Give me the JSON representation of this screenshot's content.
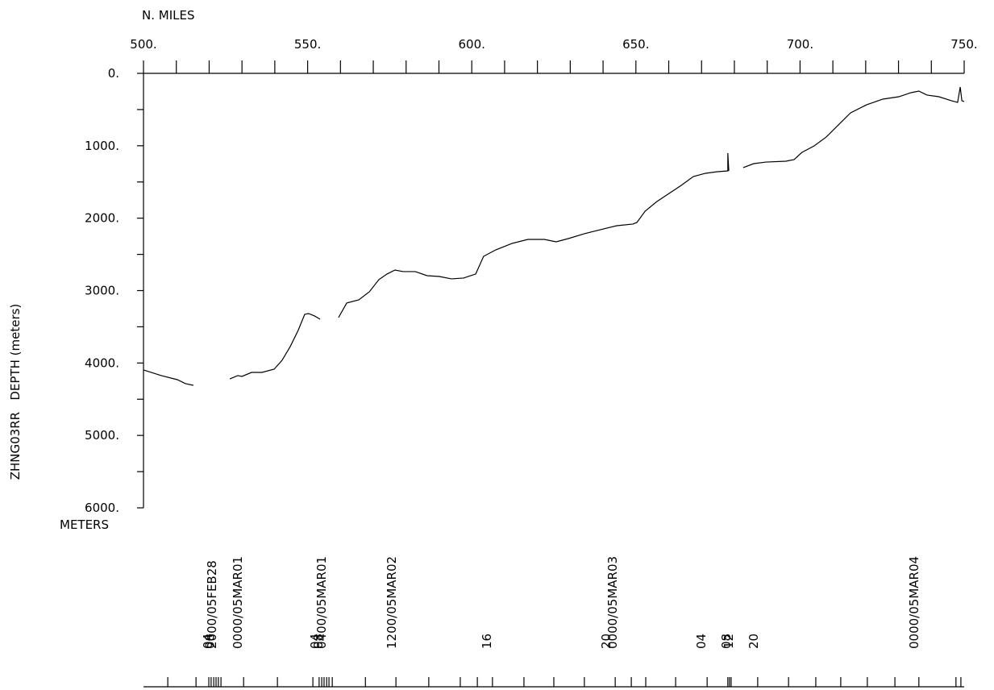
{
  "chart_data": {
    "type": "line",
    "x_label": "N. MILES",
    "y_label": "ZHNG03RR   DEPTH (meters)",
    "y_unit_label": "METERS",
    "xlim": [
      500,
      750
    ],
    "xticks": [
      {
        "value": 500,
        "label": "500."
      },
      {
        "value": 550,
        "label": "550."
      },
      {
        "value": 600,
        "label": "600."
      },
      {
        "value": 650,
        "label": "650."
      },
      {
        "value": 700,
        "label": "700."
      },
      {
        "value": 750,
        "label": "750."
      }
    ],
    "xminorticks": [
      510,
      520,
      530,
      540,
      560,
      570,
      580,
      590,
      610,
      620,
      630,
      640,
      660,
      670,
      680,
      690,
      710,
      720,
      730,
      740
    ],
    "ylim": [
      6000,
      0
    ],
    "yticks": [
      {
        "value": 0,
        "label": "0."
      },
      {
        "value": 1000,
        "label": "1000."
      },
      {
        "value": 2000,
        "label": "2000."
      },
      {
        "value": 3000,
        "label": "3000."
      },
      {
        "value": 4000,
        "label": "4000."
      },
      {
        "value": 5000,
        "label": "5000."
      },
      {
        "value": 6000,
        "label": "6000."
      }
    ],
    "yminorticks": [
      500,
      1500,
      2500,
      3500,
      4500,
      5500
    ],
    "color": "#000000",
    "x": [
      500,
      505.4,
      510.3,
      512.8,
      515.2,
      null,
      526.3,
      528.7,
      530.0,
      532.9,
      536.1,
      539.8,
      542.2,
      544.7,
      547.1,
      549.1,
      550.3,
      552.1,
      553.8,
      null,
      559.4,
      561.9,
      565.6,
      568.8,
      571.7,
      574.2,
      576.6,
      579.1,
      582.8,
      586.4,
      590.1,
      593.8,
      597.5,
      601.2,
      603.6,
      607.3,
      612.2,
      617.1,
      622.1,
      625.7,
      629.4,
      634.3,
      639.2,
      644.2,
      649.1,
      650.3,
      652.8,
      656.4,
      660.1,
      663.8,
      667.5,
      671.2,
      674.9,
      678.0,
      678.0,
      678.3,
      null,
      682.7,
      685.9,
      689.6,
      695.7,
      698.2,
      700.6,
      704.3,
      708.0,
      711.7,
      715.4,
      720.3,
      725.2,
      730.1,
      733.8,
      736.2,
      738.7,
      742.3,
      746.1,
      748.0,
      748.8,
      749.3,
      750
    ],
    "values": [
      4096,
      4174,
      4230,
      4285,
      4308,
      null,
      4219,
      4174,
      4185,
      4130,
      4130,
      4085,
      3963,
      3773,
      3551,
      3328,
      3317,
      3350,
      3395,
      null,
      3373,
      3172,
      3128,
      3016,
      2849,
      2771,
      2716,
      2738,
      2738,
      2794,
      2805,
      2838,
      2827,
      2771,
      2527,
      2438,
      2349,
      2293,
      2293,
      2326,
      2282,
      2215,
      2159,
      2104,
      2081,
      2059,
      1904,
      1770,
      1658,
      1547,
      1425,
      1380,
      1358,
      1347,
      1102,
      1347,
      null,
      1302,
      1247,
      1225,
      1213,
      1191,
      1091,
      1002,
      879,
      712,
      545,
      434,
      356,
      323,
      267,
      245,
      300,
      323,
      378,
      401,
      189,
      378,
      389
    ],
    "time_labels": [
      {
        "x": 519.6,
        "label": "04"
      },
      {
        "x": 520.2,
        "label": "08"
      },
      {
        "x": 520.9,
        "label": "2000/05FEB28"
      },
      {
        "x": 528.7,
        "label": "0000/05MAR01"
      },
      {
        "x": 552.3,
        "label": "04"
      },
      {
        "x": 553.3,
        "label": "08"
      },
      {
        "x": 554.3,
        "label": "0400/05MAR01"
      },
      {
        "x": 575.6,
        "label": "1200/05MAR02"
      },
      {
        "x": 604.6,
        "label": "16"
      },
      {
        "x": 641.0,
        "label": "20"
      },
      {
        "x": 642.9,
        "label": "0000/05MAR03"
      },
      {
        "x": 669.9,
        "label": "04"
      },
      {
        "x": 677.6,
        "label": "08"
      },
      {
        "x": 678.3,
        "label": "12"
      },
      {
        "x": 685.9,
        "label": "20"
      },
      {
        "x": 734.8,
        "label": "0000/05MAR04"
      }
    ],
    "time_ticks": [
      507.4,
      516.0,
      519.9,
      520.6,
      521.4,
      522.1,
      522.8,
      523.6,
      530.5,
      540.8,
      551.6,
      553.5,
      554.3,
      555.0,
      555.8,
      556.5,
      557.5,
      567.6,
      576.9,
      586.9,
      596.5,
      601.7,
      606.3,
      615.9,
      625.0,
      634.3,
      643.7,
      648.6,
      653.0,
      662.1,
      671.7,
      678.0,
      678.5,
      679.0,
      687.1,
      696.5,
      704.8,
      712.4,
      720.5,
      728.9,
      736.2,
      747.5,
      749.0
    ]
  }
}
